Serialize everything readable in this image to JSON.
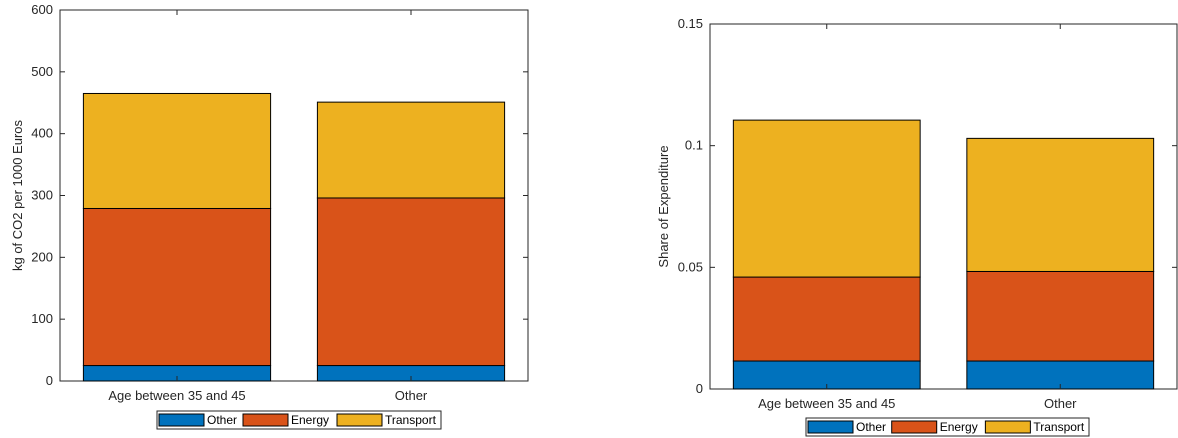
{
  "chart_data": [
    {
      "type": "bar",
      "stacked": true,
      "categories": [
        "Age between 35 and 45",
        "Other"
      ],
      "series": [
        {
          "name": "Other",
          "color": "#0072BD",
          "values": [
            25,
            25
          ]
        },
        {
          "name": "Energy",
          "color": "#D95319",
          "values": [
            254,
            271
          ]
        },
        {
          "name": "Transport",
          "color": "#EDB120",
          "values": [
            186,
            155
          ]
        }
      ],
      "title": "",
      "xlabel": "",
      "ylabel": "kg of CO2 per 1000 Euros",
      "ylim": [
        0,
        600
      ],
      "yticks": [
        0,
        100,
        200,
        300,
        400,
        500,
        600
      ],
      "ytick_labels": [
        "0",
        "100",
        "200",
        "300",
        "400",
        "500",
        "600"
      ],
      "xlim": [
        -0.5,
        1.5
      ],
      "grid": false,
      "legend_position": "bottom"
    },
    {
      "type": "bar",
      "stacked": true,
      "categories": [
        "Age between 35 and 45",
        "Other"
      ],
      "series": [
        {
          "name": "Other",
          "color": "#0072BD",
          "values": [
            0.0115,
            0.0115
          ]
        },
        {
          "name": "Energy",
          "color": "#D95319",
          "values": [
            0.0345,
            0.0368
          ]
        },
        {
          "name": "Transport",
          "color": "#EDB120",
          "values": [
            0.0645,
            0.0547
          ]
        }
      ],
      "title": "",
      "xlabel": "",
      "ylabel": "Share of Expenditure",
      "ylim": [
        0,
        0.15
      ],
      "yticks": [
        0,
        0.05,
        0.1,
        0.15
      ],
      "ytick_labels": [
        "0",
        "0.05",
        "0.1",
        "0.15"
      ],
      "xlim": [
        -0.5,
        1.5
      ],
      "grid": false,
      "legend_position": "bottom"
    }
  ]
}
